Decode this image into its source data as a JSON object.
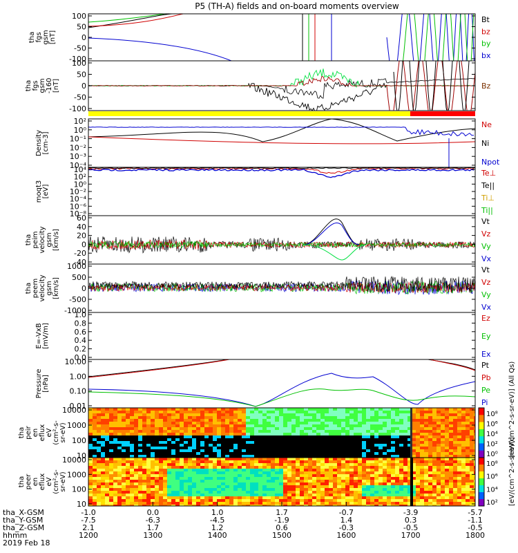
{
  "title": "P5 (TH-A) fields and on-board moments overview",
  "chart_data": {
    "type": "line",
    "panels": [
      {
        "id": "fgs",
        "ylabel": [
          "tha",
          "fgs",
          "gsm",
          "[nT]"
        ],
        "yticks": [
          "100",
          "50",
          "0",
          "-50",
          "-100"
        ],
        "ylim": [
          -100,
          100
        ],
        "legend": [
          {
            "name": "Bt",
            "color": "#000000"
          },
          {
            "name": "bz",
            "color": "#d00000"
          },
          {
            "name": "by",
            "color": "#00c000"
          },
          {
            "name": "bx",
            "color": "#0000d0"
          }
        ]
      },
      {
        "id": "fgs_lim",
        "ylabel": [
          "tha",
          "fgs",
          "gsm",
          "-160",
          "[nT]"
        ],
        "yticks": [
          "100",
          "50",
          "0",
          "-50",
          "-100"
        ],
        "ylim": [
          -125,
          125
        ],
        "legend": [
          {
            "name": "Bz",
            "color": "#7a3000"
          }
        ]
      },
      {
        "id": "density",
        "ylabel": [
          "Density",
          "[cm-3]"
        ],
        "yticks": [
          "10²",
          "10⁰",
          "10⁻¹",
          "10⁻²",
          "10⁻³",
          "10⁻⁴"
        ],
        "legend": [
          {
            "name": "Ne",
            "color": "#d00000"
          },
          {
            "name": "Ni",
            "color": "#000000"
          },
          {
            "name": "Npot",
            "color": "#0000d0"
          }
        ]
      },
      {
        "id": "temp",
        "ylabel": [
          "moqt3",
          "[eV]"
        ],
        "yticks": [
          "10⁴",
          "10²",
          "10⁰",
          "10⁻²",
          "10⁻⁴",
          "10⁻⁶",
          "10⁻⁸"
        ],
        "legend": [
          {
            "name": "Te⊥",
            "color": "#d00000"
          },
          {
            "name": "Te||",
            "color": "#000000"
          },
          {
            "name": "Ti⊥",
            "color": "#d0a000"
          },
          {
            "name": "Ti||",
            "color": "#00c000"
          }
        ]
      },
      {
        "id": "peim",
        "ylabel": [
          "tha",
          "peim",
          "velocity",
          "gsm",
          "[km/s]"
        ],
        "yticks": [
          "60",
          "40",
          "20",
          "0",
          "-20",
          "-40"
        ],
        "ylim": [
          -40,
          60
        ],
        "legend": [
          {
            "name": "Vt",
            "color": "#000000"
          },
          {
            "name": "Vz",
            "color": "#d00000"
          },
          {
            "name": "Vy",
            "color": "#00c000"
          },
          {
            "name": "Vx",
            "color": "#0000d0"
          }
        ]
      },
      {
        "id": "peem",
        "ylabel": [
          "tha",
          "peem",
          "velocity",
          "gsm",
          "[km/s]"
        ],
        "yticks": [
          "1000",
          "500",
          "0",
          "-500",
          "-1000"
        ],
        "ylim": [
          -1000,
          1000
        ],
        "legend": [
          {
            "name": "Vt",
            "color": "#000000"
          },
          {
            "name": "Vz",
            "color": "#d00000"
          },
          {
            "name": "Vy",
            "color": "#00c000"
          },
          {
            "name": "Vx",
            "color": "#0000d0"
          }
        ]
      },
      {
        "id": "efield",
        "ylabel": [
          "E=-VxB",
          "[mV/m]"
        ],
        "yticks": [
          "1.0",
          "0.8",
          "0.6",
          "0.4",
          "0.2",
          "0.0"
        ],
        "ylim": [
          0,
          1
        ],
        "legend": [
          {
            "name": "Ez",
            "color": "#d00000"
          },
          {
            "name": "Ey",
            "color": "#00c000"
          },
          {
            "name": "Ex",
            "color": "#0000d0"
          }
        ]
      },
      {
        "id": "pressure",
        "ylabel": [
          "Pressure",
          "[nPa]"
        ],
        "yticks": [
          "10.00",
          "1.00",
          "0.10",
          "0.01"
        ],
        "legend": [
          {
            "name": "Pt",
            "color": "#000000"
          },
          {
            "name": "Pb",
            "color": "#d00000"
          },
          {
            "name": "Pe",
            "color": "#00c000"
          },
          {
            "name": "Pi",
            "color": "#0000d0"
          }
        ]
      },
      {
        "id": "peir",
        "ylabel": [
          "tha",
          "peir",
          "en",
          "eflux",
          "eV",
          "(cm²-s-",
          "sr-eV)"
        ],
        "yticks": [
          "10000",
          "1000",
          "100",
          "10"
        ],
        "colorbar": [
          "10⁸",
          "10⁶",
          "10⁴",
          "10²",
          "10⁰"
        ],
        "cbar_label": "[eV/(cm^2-s-sr-eV)] (All Qs)"
      },
      {
        "id": "peer",
        "ylabel": [
          "tha",
          "peer",
          "en",
          "eflux",
          "eV",
          "(cm²-s-",
          "sr-eV)"
        ],
        "yticks": [
          "10000",
          "1000",
          "100",
          "10"
        ],
        "colorbar": [
          "10⁸",
          "10⁶",
          "10⁴",
          "10²"
        ],
        "cbar_label": "[eV/(cm^2-s-sr-eV)]"
      }
    ],
    "times": [
      "1200",
      "1300",
      "1400",
      "1500",
      "1600",
      "1700",
      "1800"
    ],
    "x_gsm": [
      "-1.0",
      "0.0",
      "1.0",
      "1.7",
      "-0.7",
      "-3.9",
      "-5.7"
    ],
    "y_gsm": [
      "-7.5",
      "-6.3",
      "-4.5",
      "-1.9",
      "1.4",
      "0.3",
      "-1.1"
    ],
    "z_gsm": [
      "2.1",
      "1.7",
      "1.2",
      "0.6",
      "-0.3",
      "-0.5",
      "-0.5"
    ],
    "row_labels": [
      "tha_X-GSM",
      "tha_Y-GSM",
      "tha_Z-GSM",
      "hhmm",
      "2019 Feb 18"
    ],
    "mode_bar": {
      "colors": [
        "#ffff00",
        "#ff0000"
      ],
      "switch_hhmm": "1645"
    }
  }
}
